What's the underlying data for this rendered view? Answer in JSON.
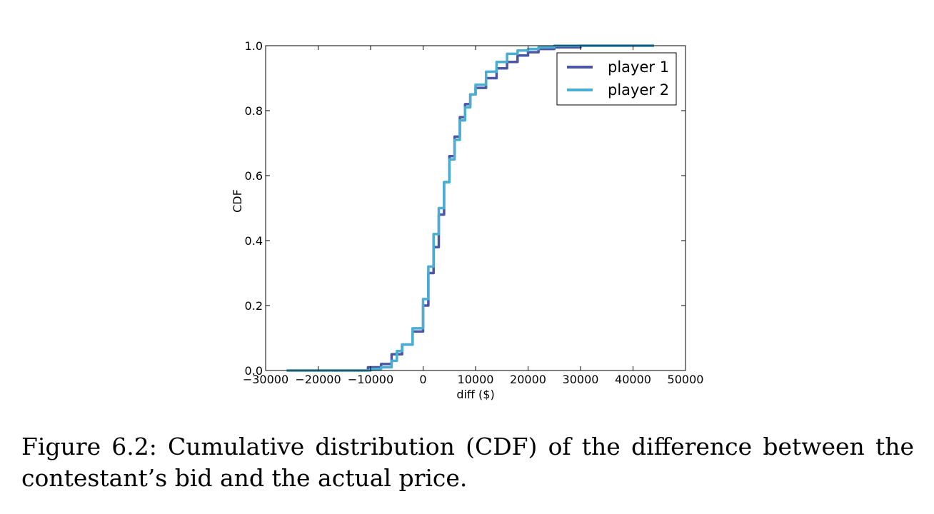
{
  "caption": "Figure 6.2: Cumulative distribution (CDF) of the difference between the contestant’s bid and the actual price.",
  "chart_data": {
    "type": "line",
    "xlabel": "diff ($)",
    "ylabel": "CDF",
    "xlim": [
      -30000,
      50000
    ],
    "ylim": [
      0.0,
      1.0
    ],
    "xticks": [
      -30000,
      -20000,
      -10000,
      0,
      10000,
      20000,
      30000,
      40000,
      50000
    ],
    "xtick_labels": [
      "−30000",
      "−20000",
      "−10000",
      "0",
      "10000",
      "20000",
      "30000",
      "40000",
      "50000"
    ],
    "yticks": [
      0.0,
      0.2,
      0.4,
      0.6,
      0.8,
      1.0
    ],
    "ytick_labels": [
      "0.0",
      "0.2",
      "0.4",
      "0.6",
      "0.8",
      "1.0"
    ],
    "legend_position": "top-right",
    "grid": false,
    "series": [
      {
        "name": "player 1",
        "color": "#4b57a5",
        "x": [
          -26000,
          -14000,
          -10500,
          -8000,
          -6000,
          -4000,
          -2000,
          0,
          1000,
          2000,
          3000,
          4000,
          5000,
          6000,
          7000,
          8000,
          9000,
          10000,
          12000,
          14000,
          16000,
          18000,
          20000,
          22000,
          25000,
          30000,
          35000,
          40000,
          44000
        ],
        "y": [
          0.0,
          0.0,
          0.01,
          0.02,
          0.05,
          0.08,
          0.12,
          0.2,
          0.3,
          0.38,
          0.48,
          0.58,
          0.66,
          0.72,
          0.78,
          0.82,
          0.85,
          0.87,
          0.9,
          0.93,
          0.95,
          0.97,
          0.98,
          0.99,
          0.995,
          1.0,
          1.0,
          1.0,
          1.0
        ]
      },
      {
        "name": "player 2",
        "color": "#4aaed2",
        "x": [
          -26000,
          -12000,
          -10000,
          -8000,
          -6000,
          -5000,
          -4000,
          -2000,
          0,
          1000,
          2000,
          3000,
          4000,
          5000,
          6000,
          7000,
          8000,
          9000,
          10000,
          12000,
          14000,
          16000,
          18000,
          20000,
          22000,
          25000,
          30000,
          35000,
          40000,
          44000
        ],
        "y": [
          0.0,
          0.0,
          0.005,
          0.01,
          0.03,
          0.06,
          0.08,
          0.13,
          0.22,
          0.32,
          0.42,
          0.5,
          0.58,
          0.65,
          0.71,
          0.77,
          0.81,
          0.85,
          0.88,
          0.92,
          0.95,
          0.975,
          0.985,
          0.99,
          0.995,
          1.0,
          1.0,
          1.0,
          1.0,
          1.0
        ]
      }
    ]
  }
}
